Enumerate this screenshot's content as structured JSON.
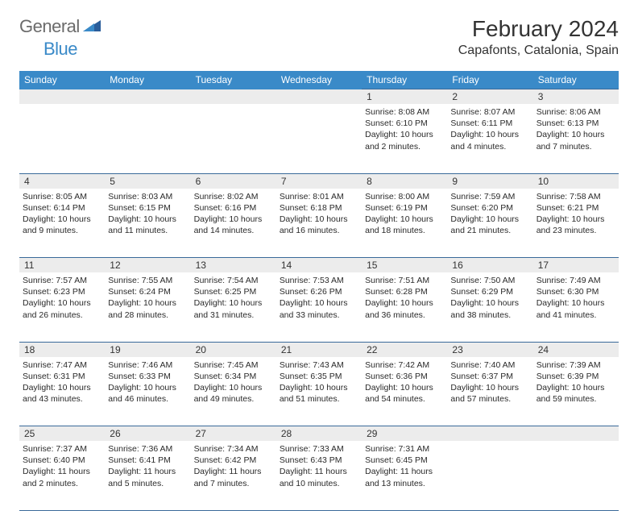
{
  "logo": {
    "general": "General",
    "blue": "Blue"
  },
  "title": "February 2024",
  "location": "Capafonts, Catalonia, Spain",
  "colors": {
    "header_bg": "#3a8ac8",
    "header_text": "#ffffff",
    "border": "#3a6a9a",
    "daynum_bg": "#ececec",
    "page_bg": "#ffffff",
    "text": "#2a2a2a",
    "logo_gray": "#6b6b6b",
    "logo_blue": "#3a8ac8"
  },
  "day_names": [
    "Sunday",
    "Monday",
    "Tuesday",
    "Wednesday",
    "Thursday",
    "Friday",
    "Saturday"
  ],
  "weeks": [
    [
      null,
      null,
      null,
      null,
      {
        "n": "1",
        "sunrise": "Sunrise: 8:08 AM",
        "sunset": "Sunset: 6:10 PM",
        "daylight1": "Daylight: 10 hours",
        "daylight2": "and 2 minutes."
      },
      {
        "n": "2",
        "sunrise": "Sunrise: 8:07 AM",
        "sunset": "Sunset: 6:11 PM",
        "daylight1": "Daylight: 10 hours",
        "daylight2": "and 4 minutes."
      },
      {
        "n": "3",
        "sunrise": "Sunrise: 8:06 AM",
        "sunset": "Sunset: 6:13 PM",
        "daylight1": "Daylight: 10 hours",
        "daylight2": "and 7 minutes."
      }
    ],
    [
      {
        "n": "4",
        "sunrise": "Sunrise: 8:05 AM",
        "sunset": "Sunset: 6:14 PM",
        "daylight1": "Daylight: 10 hours",
        "daylight2": "and 9 minutes."
      },
      {
        "n": "5",
        "sunrise": "Sunrise: 8:03 AM",
        "sunset": "Sunset: 6:15 PM",
        "daylight1": "Daylight: 10 hours",
        "daylight2": "and 11 minutes."
      },
      {
        "n": "6",
        "sunrise": "Sunrise: 8:02 AM",
        "sunset": "Sunset: 6:16 PM",
        "daylight1": "Daylight: 10 hours",
        "daylight2": "and 14 minutes."
      },
      {
        "n": "7",
        "sunrise": "Sunrise: 8:01 AM",
        "sunset": "Sunset: 6:18 PM",
        "daylight1": "Daylight: 10 hours",
        "daylight2": "and 16 minutes."
      },
      {
        "n": "8",
        "sunrise": "Sunrise: 8:00 AM",
        "sunset": "Sunset: 6:19 PM",
        "daylight1": "Daylight: 10 hours",
        "daylight2": "and 18 minutes."
      },
      {
        "n": "9",
        "sunrise": "Sunrise: 7:59 AM",
        "sunset": "Sunset: 6:20 PM",
        "daylight1": "Daylight: 10 hours",
        "daylight2": "and 21 minutes."
      },
      {
        "n": "10",
        "sunrise": "Sunrise: 7:58 AM",
        "sunset": "Sunset: 6:21 PM",
        "daylight1": "Daylight: 10 hours",
        "daylight2": "and 23 minutes."
      }
    ],
    [
      {
        "n": "11",
        "sunrise": "Sunrise: 7:57 AM",
        "sunset": "Sunset: 6:23 PM",
        "daylight1": "Daylight: 10 hours",
        "daylight2": "and 26 minutes."
      },
      {
        "n": "12",
        "sunrise": "Sunrise: 7:55 AM",
        "sunset": "Sunset: 6:24 PM",
        "daylight1": "Daylight: 10 hours",
        "daylight2": "and 28 minutes."
      },
      {
        "n": "13",
        "sunrise": "Sunrise: 7:54 AM",
        "sunset": "Sunset: 6:25 PM",
        "daylight1": "Daylight: 10 hours",
        "daylight2": "and 31 minutes."
      },
      {
        "n": "14",
        "sunrise": "Sunrise: 7:53 AM",
        "sunset": "Sunset: 6:26 PM",
        "daylight1": "Daylight: 10 hours",
        "daylight2": "and 33 minutes."
      },
      {
        "n": "15",
        "sunrise": "Sunrise: 7:51 AM",
        "sunset": "Sunset: 6:28 PM",
        "daylight1": "Daylight: 10 hours",
        "daylight2": "and 36 minutes."
      },
      {
        "n": "16",
        "sunrise": "Sunrise: 7:50 AM",
        "sunset": "Sunset: 6:29 PM",
        "daylight1": "Daylight: 10 hours",
        "daylight2": "and 38 minutes."
      },
      {
        "n": "17",
        "sunrise": "Sunrise: 7:49 AM",
        "sunset": "Sunset: 6:30 PM",
        "daylight1": "Daylight: 10 hours",
        "daylight2": "and 41 minutes."
      }
    ],
    [
      {
        "n": "18",
        "sunrise": "Sunrise: 7:47 AM",
        "sunset": "Sunset: 6:31 PM",
        "daylight1": "Daylight: 10 hours",
        "daylight2": "and 43 minutes."
      },
      {
        "n": "19",
        "sunrise": "Sunrise: 7:46 AM",
        "sunset": "Sunset: 6:33 PM",
        "daylight1": "Daylight: 10 hours",
        "daylight2": "and 46 minutes."
      },
      {
        "n": "20",
        "sunrise": "Sunrise: 7:45 AM",
        "sunset": "Sunset: 6:34 PM",
        "daylight1": "Daylight: 10 hours",
        "daylight2": "and 49 minutes."
      },
      {
        "n": "21",
        "sunrise": "Sunrise: 7:43 AM",
        "sunset": "Sunset: 6:35 PM",
        "daylight1": "Daylight: 10 hours",
        "daylight2": "and 51 minutes."
      },
      {
        "n": "22",
        "sunrise": "Sunrise: 7:42 AM",
        "sunset": "Sunset: 6:36 PM",
        "daylight1": "Daylight: 10 hours",
        "daylight2": "and 54 minutes."
      },
      {
        "n": "23",
        "sunrise": "Sunrise: 7:40 AM",
        "sunset": "Sunset: 6:37 PM",
        "daylight1": "Daylight: 10 hours",
        "daylight2": "and 57 minutes."
      },
      {
        "n": "24",
        "sunrise": "Sunrise: 7:39 AM",
        "sunset": "Sunset: 6:39 PM",
        "daylight1": "Daylight: 10 hours",
        "daylight2": "and 59 minutes."
      }
    ],
    [
      {
        "n": "25",
        "sunrise": "Sunrise: 7:37 AM",
        "sunset": "Sunset: 6:40 PM",
        "daylight1": "Daylight: 11 hours",
        "daylight2": "and 2 minutes."
      },
      {
        "n": "26",
        "sunrise": "Sunrise: 7:36 AM",
        "sunset": "Sunset: 6:41 PM",
        "daylight1": "Daylight: 11 hours",
        "daylight2": "and 5 minutes."
      },
      {
        "n": "27",
        "sunrise": "Sunrise: 7:34 AM",
        "sunset": "Sunset: 6:42 PM",
        "daylight1": "Daylight: 11 hours",
        "daylight2": "and 7 minutes."
      },
      {
        "n": "28",
        "sunrise": "Sunrise: 7:33 AM",
        "sunset": "Sunset: 6:43 PM",
        "daylight1": "Daylight: 11 hours",
        "daylight2": "and 10 minutes."
      },
      {
        "n": "29",
        "sunrise": "Sunrise: 7:31 AM",
        "sunset": "Sunset: 6:45 PM",
        "daylight1": "Daylight: 11 hours",
        "daylight2": "and 13 minutes."
      },
      null,
      null
    ]
  ]
}
